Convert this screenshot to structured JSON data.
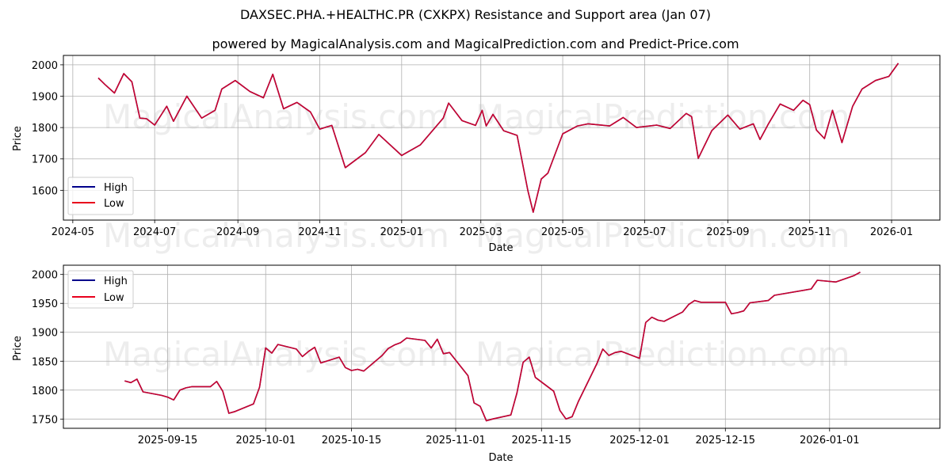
{
  "header": {
    "title": "DAXSEC.PHA.+HEALTHC.PR (CXKPX) Resistance and Support area (Jan 07)",
    "subtitle": "powered by MagicalAnalysis.com and MagicalPrediction.com and Predict-Price.com"
  },
  "watermarks": [
    "MagicalAnalysis.com",
    "MagicalPrediction.com"
  ],
  "colors": {
    "high": "#00008b",
    "low": "#e8001c",
    "grid": "#b0b0b0"
  },
  "chart_data": [
    {
      "type": "line",
      "title": "",
      "xlabel": "Date",
      "ylabel": "Price",
      "x_ticks": [
        "2024-05",
        "2024-07",
        "2024-09",
        "2024-11",
        "2025-01",
        "2025-03",
        "2025-05",
        "2025-07",
        "2025-09",
        "2025-11",
        "2026-01"
      ],
      "y_ticks": [
        1600,
        1700,
        1800,
        1900,
        2000
      ],
      "ylim": [
        1505,
        2030
      ],
      "grid": true,
      "legend": {
        "position": "lower left",
        "entries": [
          "High",
          "Low"
        ]
      },
      "x": [
        "2024-05-20",
        "2024-05-25",
        "2024-06-01",
        "2024-06-08",
        "2024-06-14",
        "2024-06-20",
        "2024-06-25",
        "2024-07-01",
        "2024-07-10",
        "2024-07-15",
        "2024-07-25",
        "2024-08-05",
        "2024-08-15",
        "2024-08-20",
        "2024-08-30",
        "2024-09-10",
        "2024-09-20",
        "2024-09-27",
        "2024-10-05",
        "2024-10-15",
        "2024-10-25",
        "2024-11-01",
        "2024-11-10",
        "2024-11-20",
        "2024-12-05",
        "2024-12-15",
        "2025-01-01",
        "2025-01-15",
        "2025-02-01",
        "2025-02-05",
        "2025-02-15",
        "2025-02-25",
        "2025-03-02",
        "2025-03-05",
        "2025-03-10",
        "2025-03-18",
        "2025-03-28",
        "2025-04-05",
        "2025-04-09",
        "2025-04-15",
        "2025-04-20",
        "2025-05-01",
        "2025-05-12",
        "2025-05-20",
        "2025-06-05",
        "2025-06-15",
        "2025-06-25",
        "2025-07-10",
        "2025-07-20",
        "2025-08-01",
        "2025-08-05",
        "2025-08-10",
        "2025-08-20",
        "2025-09-01",
        "2025-09-10",
        "2025-09-20",
        "2025-09-25",
        "2025-10-01",
        "2025-10-10",
        "2025-10-20",
        "2025-10-27",
        "2025-11-01",
        "2025-11-06",
        "2025-11-12",
        "2025-11-18",
        "2025-11-25",
        "2025-12-03",
        "2025-12-10",
        "2025-12-20",
        "2025-12-30",
        "2026-01-06"
      ],
      "series": [
        {
          "name": "High",
          "values": [
            1958,
            1937,
            1910,
            1972,
            1946,
            1830,
            1828,
            1808,
            1868,
            1820,
            1900,
            1830,
            1855,
            1923,
            1950,
            1915,
            1895,
            1970,
            1860,
            1880,
            1850,
            1795,
            1807,
            1672,
            1720,
            1778,
            1711,
            1745,
            1830,
            1878,
            1822,
            1807,
            1855,
            1805,
            1842,
            1790,
            1775,
            1600,
            1530,
            1636,
            1655,
            1780,
            1805,
            1812,
            1805,
            1832,
            1800,
            1808,
            1797,
            1845,
            1835,
            1702,
            1790,
            1840,
            1795,
            1812,
            1762,
            1810,
            1875,
            1855,
            1887,
            1873,
            1792,
            1765,
            1855,
            1752,
            1868,
            1923,
            1950,
            1963,
            2005
          ]
        },
        {
          "name": "Low",
          "values": [
            1958,
            1937,
            1910,
            1972,
            1946,
            1830,
            1828,
            1808,
            1868,
            1820,
            1900,
            1830,
            1855,
            1923,
            1950,
            1915,
            1895,
            1970,
            1860,
            1880,
            1850,
            1795,
            1807,
            1672,
            1720,
            1778,
            1711,
            1745,
            1830,
            1878,
            1822,
            1807,
            1855,
            1805,
            1842,
            1790,
            1775,
            1600,
            1530,
            1636,
            1655,
            1780,
            1805,
            1812,
            1805,
            1832,
            1800,
            1808,
            1797,
            1845,
            1835,
            1702,
            1790,
            1840,
            1795,
            1812,
            1762,
            1810,
            1875,
            1855,
            1887,
            1873,
            1792,
            1765,
            1855,
            1752,
            1868,
            1923,
            1950,
            1963,
            2005
          ]
        }
      ]
    },
    {
      "type": "line",
      "title": "",
      "xlabel": "Date",
      "ylabel": "Price",
      "x_ticks": [
        "2025-09-15",
        "2025-10-01",
        "2025-10-15",
        "2025-11-01",
        "2025-11-15",
        "2025-12-01",
        "2025-12-15",
        "2026-01-01"
      ],
      "y_ticks": [
        1750,
        1800,
        1850,
        1900,
        1950,
        2000
      ],
      "ylim": [
        1734,
        2016
      ],
      "grid": true,
      "legend": {
        "position": "upper left",
        "entries": [
          "High",
          "Low"
        ]
      },
      "x": [
        "2025-09-08",
        "2025-09-09",
        "2025-09-10",
        "2025-09-11",
        "2025-09-14",
        "2025-09-15",
        "2025-09-16",
        "2025-09-17",
        "2025-09-18",
        "2025-09-19",
        "2025-09-22",
        "2025-09-23",
        "2025-09-24",
        "2025-09-25",
        "2025-09-26",
        "2025-09-29",
        "2025-09-30",
        "2025-10-01",
        "2025-10-02",
        "2025-10-03",
        "2025-10-06",
        "2025-10-07",
        "2025-10-08",
        "2025-10-09",
        "2025-10-10",
        "2025-10-13",
        "2025-10-14",
        "2025-10-15",
        "2025-10-16",
        "2025-10-17",
        "2025-10-20",
        "2025-10-21",
        "2025-10-22",
        "2025-10-23",
        "2025-10-24",
        "2025-10-27",
        "2025-10-28",
        "2025-10-29",
        "2025-10-30",
        "2025-10-31",
        "2025-11-03",
        "2025-11-04",
        "2025-11-05",
        "2025-11-06",
        "2025-11-07",
        "2025-11-10",
        "2025-11-11",
        "2025-11-12",
        "2025-11-13",
        "2025-11-14",
        "2025-11-17",
        "2025-11-18",
        "2025-11-19",
        "2025-11-20",
        "2025-11-21",
        "2025-11-24",
        "2025-11-25",
        "2025-11-26",
        "2025-11-27",
        "2025-11-28",
        "2025-12-01",
        "2025-12-02",
        "2025-12-03",
        "2025-12-04",
        "2025-12-05",
        "2025-12-08",
        "2025-12-09",
        "2025-12-10",
        "2025-12-11",
        "2025-12-12",
        "2025-12-15",
        "2025-12-16",
        "2025-12-17",
        "2025-12-18",
        "2025-12-19",
        "2025-12-22",
        "2025-12-23",
        "2025-12-29",
        "2025-12-30",
        "2026-01-02",
        "2026-01-05",
        "2026-01-06"
      ],
      "series": [
        {
          "name": "High",
          "values": [
            1816,
            1813,
            1819,
            1797,
            1791,
            1788,
            1783,
            1800,
            1804,
            1806,
            1806,
            1815,
            1798,
            1760,
            1763,
            1776,
            1805,
            1873,
            1864,
            1879,
            1871,
            1858,
            1867,
            1874,
            1847,
            1857,
            1839,
            1834,
            1836,
            1833,
            1860,
            1872,
            1878,
            1882,
            1890,
            1886,
            1873,
            1888,
            1863,
            1865,
            1825,
            1778,
            1772,
            1747,
            1750,
            1757,
            1795,
            1848,
            1857,
            1822,
            1798,
            1765,
            1750,
            1754,
            1780,
            1845,
            1871,
            1860,
            1865,
            1867,
            1855,
            1917,
            1926,
            1921,
            1919,
            1935,
            1948,
            1955,
            1952,
            1952,
            1952,
            1932,
            1934,
            1937,
            1951,
            1955,
            1964,
            1975,
            1990,
            1987,
            1998,
            2004
          ]
        },
        {
          "name": "Low",
          "values": [
            1816,
            1813,
            1819,
            1797,
            1791,
            1788,
            1783,
            1800,
            1804,
            1806,
            1806,
            1815,
            1798,
            1760,
            1763,
            1776,
            1805,
            1873,
            1864,
            1879,
            1871,
            1858,
            1867,
            1874,
            1847,
            1857,
            1839,
            1834,
            1836,
            1833,
            1860,
            1872,
            1878,
            1882,
            1890,
            1886,
            1873,
            1888,
            1863,
            1865,
            1825,
            1778,
            1772,
            1747,
            1750,
            1757,
            1795,
            1848,
            1857,
            1822,
            1798,
            1765,
            1750,
            1754,
            1780,
            1845,
            1871,
            1860,
            1865,
            1867,
            1855,
            1917,
            1926,
            1921,
            1919,
            1935,
            1948,
            1955,
            1952,
            1952,
            1952,
            1932,
            1934,
            1937,
            1951,
            1955,
            1964,
            1975,
            1990,
            1987,
            1998,
            2004
          ]
        }
      ]
    }
  ]
}
